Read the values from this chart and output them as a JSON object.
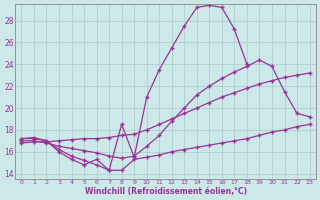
{
  "xlabel": "Windchill (Refroidissement éolien,°C)",
  "bg_color": "#cce8e8",
  "grid_color": "#aacccc",
  "line_color": "#993399",
  "xlim": [
    -0.5,
    23.5
  ],
  "ylim": [
    13.5,
    29.5
  ],
  "xticks": [
    0,
    1,
    2,
    3,
    4,
    5,
    6,
    7,
    8,
    9,
    10,
    11,
    12,
    13,
    14,
    15,
    16,
    17,
    18,
    19,
    20,
    21,
    22,
    23
  ],
  "yticks": [
    14,
    16,
    18,
    20,
    22,
    24,
    26,
    28
  ],
  "series": [
    {
      "x": [
        0,
        1,
        2,
        3,
        4,
        5,
        6,
        7,
        8,
        9,
        10,
        11,
        12,
        13,
        14,
        15,
        16,
        17,
        18,
        19,
        20,
        21,
        22,
        23
      ],
      "y": [
        17.2,
        17.3,
        17.0,
        16.2,
        15.6,
        15.2,
        14.8,
        14.3,
        18.5,
        15.5,
        21.0,
        23.5,
        25.5,
        27.5,
        29.2,
        29.4,
        29.2,
        27.2,
        24.0,
        null,
        null,
        null,
        null,
        null
      ]
    },
    {
      "x": [
        0,
        1,
        2,
        3,
        4,
        5,
        6,
        7,
        8,
        9,
        10,
        11,
        12,
        13,
        14,
        15,
        16,
        17,
        18,
        19,
        20,
        21,
        22,
        23
      ],
      "y": [
        17.0,
        17.0,
        16.8,
        16.5,
        16.3,
        16.1,
        15.9,
        15.6,
        15.4,
        15.6,
        16.5,
        17.5,
        18.8,
        20.0,
        21.2,
        22.0,
        22.7,
        23.3,
        23.8,
        24.4,
        23.8,
        21.5,
        19.5,
        19.2
      ]
    },
    {
      "x": [
        0,
        1,
        2,
        3,
        4,
        5,
        6,
        7,
        8,
        9,
        10,
        11,
        12,
        13,
        14,
        15,
        16,
        17,
        18,
        19,
        20,
        21,
        22,
        23
      ],
      "y": [
        16.8,
        16.9,
        16.9,
        17.0,
        17.1,
        17.2,
        17.2,
        17.3,
        17.5,
        17.6,
        18.0,
        18.5,
        19.0,
        19.5,
        20.0,
        20.5,
        21.0,
        21.4,
        21.8,
        22.2,
        22.5,
        22.8,
        23.0,
        23.2
      ]
    },
    {
      "x": [
        0,
        1,
        2,
        3,
        4,
        5,
        6,
        7,
        8,
        9,
        10,
        11,
        12,
        13,
        14,
        15,
        16,
        17,
        18,
        19,
        20,
        21,
        22,
        23
      ],
      "y": [
        17.2,
        17.2,
        17.0,
        16.0,
        15.3,
        14.8,
        15.3,
        14.3,
        14.3,
        15.3,
        15.5,
        15.7,
        16.0,
        16.2,
        16.4,
        16.6,
        16.8,
        17.0,
        17.2,
        17.5,
        17.8,
        18.0,
        18.3,
        18.5
      ]
    }
  ]
}
